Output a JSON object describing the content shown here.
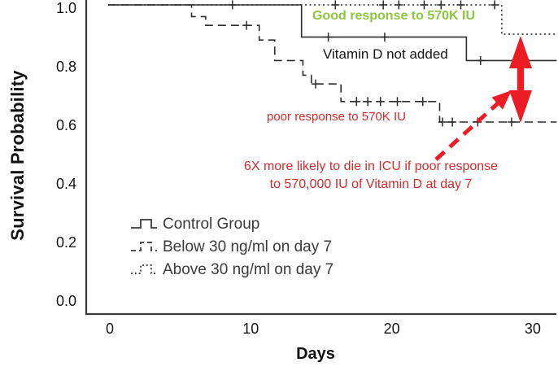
{
  "figure": {
    "y_axis_title": "Survival Probability",
    "x_axis_title": "Days"
  },
  "annotations": {
    "good_response": {
      "text": "Good response to 570K IU",
      "color": "#8CC63E"
    },
    "control": {
      "text": "Vitamin D not added",
      "color": "#141414"
    },
    "poor_response": {
      "text": "poor response to 570K IU",
      "color": "#D42B2B"
    },
    "note_line1": "6X more likely to die in ICU if poor response",
    "note_line2": "to 570,000 IU of Vitamin D at day 7",
    "note_color": "#D42B2B"
  },
  "colors": {
    "line": "#2B2B2B",
    "axis": "#3A3A3A",
    "good_green": "#8CC63E",
    "note_red": "#D42B2B",
    "arrow_red": "#EC1C24",
    "legend_text": "#3A3A3A",
    "tick_text": "#141414"
  },
  "chart_data": {
    "type": "line",
    "subtype": "kaplan-meier-step",
    "title": "",
    "xlabel": "Days",
    "ylabel": "Survival Probability",
    "xlim": [
      0,
      31.7
    ],
    "ylim": [
      0.0,
      1.0
    ],
    "xticks": [
      0,
      10,
      20,
      30
    ],
    "yticks": [
      1.0,
      0.8,
      0.6,
      0.4,
      0.2,
      0.0
    ],
    "grid": false,
    "legend_position": "inside-lower-left",
    "series": [
      {
        "name": "Control Group",
        "line_style": "solid",
        "annotation": "Vitamin D not added",
        "points": [
          [
            0,
            1.0
          ],
          [
            13.6,
            1.0
          ],
          [
            13.6,
            0.89
          ],
          [
            25.3,
            0.89
          ],
          [
            25.3,
            0.81
          ],
          [
            31.7,
            0.81
          ]
        ],
        "censors": [
          [
            8.7,
            1.0
          ],
          [
            15.5,
            0.89
          ],
          [
            19.5,
            0.89
          ],
          [
            26.3,
            0.81
          ],
          [
            29.5,
            0.81
          ]
        ]
      },
      {
        "name": "Below 30 ng/ml on day 7",
        "line_style": "dashed",
        "annotation": "poor response to 570K IU",
        "points": [
          [
            0,
            1.0
          ],
          [
            5.8,
            1.0
          ],
          [
            5.8,
            0.96
          ],
          [
            6.8,
            0.96
          ],
          [
            6.8,
            0.93
          ],
          [
            10.6,
            0.93
          ],
          [
            10.6,
            0.88
          ],
          [
            11.7,
            0.88
          ],
          [
            11.7,
            0.81
          ],
          [
            13.7,
            0.81
          ],
          [
            13.7,
            0.76
          ],
          [
            14.3,
            0.76
          ],
          [
            14.3,
            0.73
          ],
          [
            16.4,
            0.73
          ],
          [
            16.4,
            0.67
          ],
          [
            23.4,
            0.67
          ],
          [
            23.4,
            0.6
          ],
          [
            31.7,
            0.6
          ]
        ],
        "censors": [
          [
            9.7,
            0.93
          ],
          [
            14.6,
            0.73
          ],
          [
            17.5,
            0.67
          ],
          [
            18.3,
            0.67
          ],
          [
            19.2,
            0.67
          ],
          [
            20.4,
            0.67
          ],
          [
            22.2,
            0.67
          ],
          [
            23.6,
            0.6
          ],
          [
            24.3,
            0.6
          ],
          [
            26.1,
            0.6
          ],
          [
            28.5,
            0.6
          ]
        ]
      },
      {
        "name": "Above 30 ng/ml on day 7",
        "line_style": "dotted",
        "annotation": "Good response to 570K IU",
        "points": [
          [
            0,
            1.0
          ],
          [
            27.8,
            1.0
          ],
          [
            27.8,
            0.9
          ],
          [
            31.7,
            0.9
          ]
        ],
        "censors": [
          [
            16.0,
            1.0
          ],
          [
            19.4,
            1.0
          ],
          [
            20.5,
            1.0
          ],
          [
            22.3,
            1.0
          ],
          [
            23.5,
            1.0
          ],
          [
            24.9,
            1.0
          ],
          [
            27.3,
            1.0
          ]
        ]
      }
    ]
  }
}
